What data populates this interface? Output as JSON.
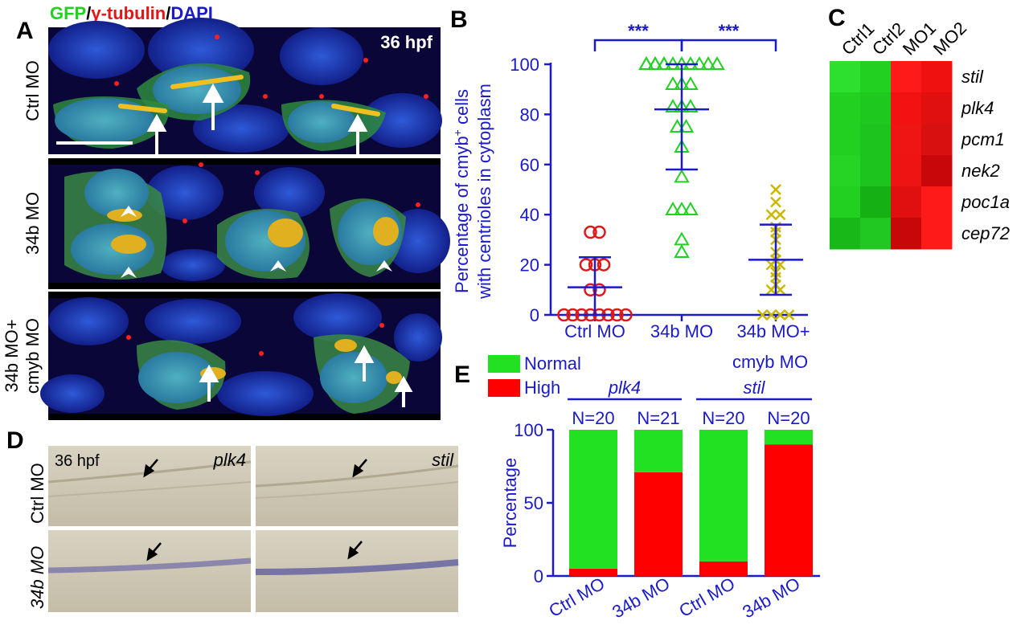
{
  "panel_a": {
    "letter": "A",
    "title_parts": [
      {
        "text": "GFP",
        "color": "#22d022"
      },
      {
        "text": "/",
        "color": "#000000"
      },
      {
        "text": "γ-tubulin",
        "color": "#e01818"
      },
      {
        "text": "/",
        "color": "#000000"
      },
      {
        "text": "DAPI",
        "color": "#1a1ac8"
      }
    ],
    "timepoint": "36 hpf",
    "rows": [
      {
        "label_lines": [
          "Ctrl MO"
        ]
      },
      {
        "label_lines": [
          "34b MO"
        ]
      },
      {
        "label_lines": [
          "34b MO+",
          "cmyb MO"
        ]
      }
    ]
  },
  "panel_b": {
    "letter": "B",
    "ylabel_lines": [
      "Percentage of cmyb",
      "+",
      " cells",
      "with centrioles in cytoplasm"
    ],
    "significance": [
      "***",
      "***"
    ],
    "category_labels": [
      "Ctrl MO",
      "34b MO",
      "34b MO+",
      "cmyb MO"
    ],
    "chart_data": {
      "type": "scatter",
      "ylim": [
        0,
        100
      ],
      "yticks": [
        0,
        20,
        40,
        60,
        80,
        100
      ],
      "categories": [
        "Ctrl MO",
        "34b MO",
        "34b MO+ cmyb MO"
      ],
      "series": [
        {
          "marker": "circle",
          "color": "#e01818",
          "values": [
            0,
            0,
            0,
            0,
            0,
            0,
            0,
            0,
            10,
            10,
            20,
            20,
            20,
            33,
            33
          ],
          "mean": 11,
          "sd_low": 0,
          "sd_high": 23
        },
        {
          "marker": "triangle",
          "color": "#22d022",
          "values": [
            100,
            100,
            100,
            100,
            100,
            100,
            100,
            100,
            100,
            100,
            100,
            100,
            92,
            92,
            92,
            83,
            83,
            83,
            75,
            75,
            67,
            55,
            42,
            42,
            42,
            30,
            25
          ],
          "mean": 82,
          "sd_low": 58,
          "sd_high": 100
        },
        {
          "marker": "x",
          "color": "#c8b800",
          "values": [
            50,
            45,
            40,
            40,
            35,
            33,
            30,
            25,
            22,
            20,
            20,
            17,
            15,
            12,
            10,
            10,
            0,
            0,
            0,
            0
          ],
          "mean": 22,
          "sd_low": 8,
          "sd_high": 36
        }
      ]
    }
  },
  "panel_c": {
    "letter": "C",
    "columns": [
      "Ctrl1",
      "Ctrl2",
      "MO1",
      "MO2"
    ],
    "genes": [
      "stil",
      "plk4",
      "pcm1",
      "nek2",
      "poc1a",
      "cep72"
    ],
    "chart_data": {
      "type": "heatmap",
      "columns": [
        "Ctrl1",
        "Ctrl2",
        "MO1",
        "MO2"
      ],
      "rows": [
        "stil",
        "plk4",
        "pcm1",
        "nek2",
        "poc1a",
        "cep72"
      ],
      "colors": [
        [
          "#2ee02e",
          "#22d022",
          "#ff1a1a",
          "#ef1010"
        ],
        [
          "#22d022",
          "#1ec81e",
          "#f21212",
          "#e01010"
        ],
        [
          "#22d022",
          "#1ec41e",
          "#f01515",
          "#d81010"
        ],
        [
          "#26d426",
          "#1ec41e",
          "#ee1414",
          "#c80808"
        ],
        [
          "#22d022",
          "#14b014",
          "#e01010",
          "#ff1a1a"
        ],
        [
          "#18b818",
          "#22c822",
          "#c80808",
          "#ff1a1a"
        ]
      ]
    }
  },
  "panel_d": {
    "letter": "D",
    "timepoint": "36 hpf",
    "genes": [
      "plk4",
      "stil"
    ],
    "rows": [
      "Ctrl MO",
      "34b MO"
    ]
  },
  "panel_e": {
    "letter": "E",
    "legend": [
      {
        "label": "Normal",
        "color": "#22e022"
      },
      {
        "label": "High",
        "color": "#ff0000"
      }
    ],
    "groups": [
      "plk4",
      "stil"
    ],
    "ylabel": "Percentage",
    "chart_data": {
      "type": "bar",
      "stacked": true,
      "ylim": [
        0,
        100
      ],
      "yticks": [
        0,
        50,
        100
      ],
      "categories": [
        "Ctrl MO",
        "34b MO",
        "Ctrl MO",
        "34b MO"
      ],
      "n_labels": [
        "N=20",
        "N=21",
        "N=20",
        "N=20"
      ],
      "series": [
        {
          "name": "High",
          "values": [
            5,
            71,
            10,
            90
          ]
        },
        {
          "name": "Normal",
          "values": [
            95,
            29,
            90,
            10
          ]
        }
      ]
    }
  }
}
